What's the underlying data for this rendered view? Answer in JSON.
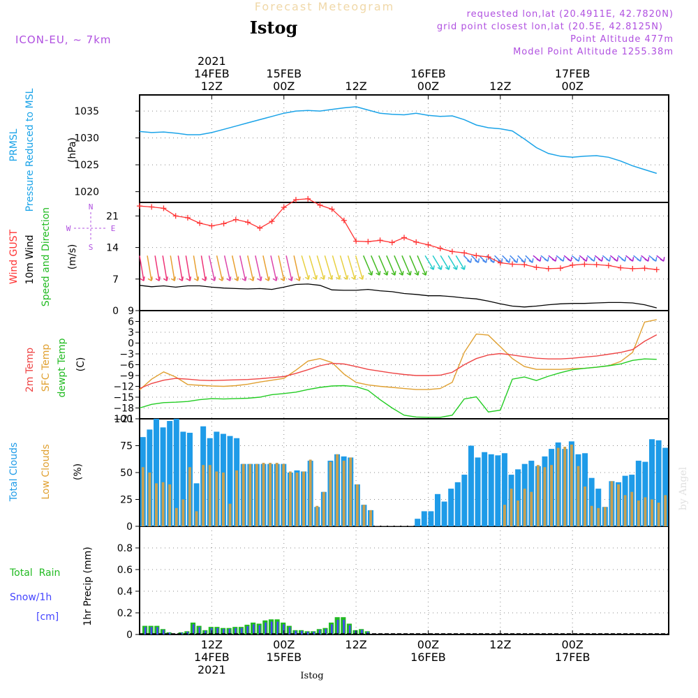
{
  "header": {
    "forecast_title": "Forecast Meteogram",
    "location": "Istog",
    "model": "ICON-EU, ~ 7km",
    "requested": "requested lon,lat (20.4911E, 42.7820N)",
    "grid_point": "grid point closest lon,lat (20.5E, 42.8125N)",
    "point_alt": "Point Altitude 477m",
    "model_alt": "Model Point Altitude 1255.38m",
    "bottom_location": "Istog",
    "watermark": "by Angel"
  },
  "time_axis": {
    "top_labels": [
      {
        "h": 12,
        "lines": [
          "2021",
          "14FEB",
          "12Z"
        ]
      },
      {
        "h": 24,
        "lines": [
          "15FEB",
          "00Z"
        ]
      },
      {
        "h": 36,
        "lines": [
          "12Z"
        ]
      },
      {
        "h": 48,
        "lines": [
          "16FEB",
          "00Z"
        ]
      },
      {
        "h": 60,
        "lines": [
          "12Z"
        ]
      },
      {
        "h": 72,
        "lines": [
          "17FEB",
          "00Z"
        ]
      }
    ],
    "bottom_labels": [
      {
        "h": 12,
        "lines": [
          "12Z",
          "14FEB",
          "2021"
        ]
      },
      {
        "h": 24,
        "lines": [
          "00Z",
          "15FEB"
        ]
      },
      {
        "h": 36,
        "lines": [
          "12Z"
        ]
      },
      {
        "h": 48,
        "lines": [
          "00Z",
          "16FEB"
        ]
      },
      {
        "h": 60,
        "lines": [
          "12Z"
        ]
      },
      {
        "h": 72,
        "lines": [
          "00Z",
          "17FEB"
        ]
      }
    ]
  },
  "labels": {
    "pressure": {
      "l1": "PRMSL",
      "l2": "Pressure Reduced to MSL",
      "unit": "(hPa)"
    },
    "wind": {
      "gust": "Wind GUST",
      "w10": "10m Wind",
      "speed": "Speed and Direction",
      "unit": "(m/s)",
      "compass_n": "N",
      "compass_s": "S",
      "compass_w": "W",
      "compass_e": "E"
    },
    "temp": {
      "t2m": "2m Temp",
      "sfc": "SFC Temp",
      "dew": "dewpt Temp",
      "unit": "(C)"
    },
    "clouds": {
      "total": "Total Clouds",
      "low": "Low Clouds",
      "unit": "(%)"
    },
    "precip": {
      "rain": "Total  Rain",
      "snow": "Snow/1h",
      "cm": "[cm]",
      "unit": "1hr Precip (mm)"
    }
  },
  "colors": {
    "pressure": "#1aa3e8",
    "gust": "#ff3333",
    "wind10": "#000000",
    "t2m": "#ee4444",
    "sfc": "#e0a030",
    "dew": "#22cc22",
    "total_cloud": "#1e9be8",
    "low_cloud": "#c8a050",
    "rain": "#22bb22",
    "snow": "#4444ff",
    "purple": "#b050e0"
  },
  "chart_data": [
    {
      "type": "line",
      "name": "pressure",
      "ylim": [
        1018,
        1038
      ],
      "yticks": [
        1020,
        1025,
        1030,
        1035
      ],
      "x": [
        0,
        2,
        4,
        6,
        8,
        10,
        12,
        14,
        16,
        18,
        20,
        22,
        24,
        26,
        28,
        30,
        32,
        34,
        36,
        38,
        40,
        42,
        44,
        46,
        48,
        50,
        52,
        54,
        56,
        58,
        60,
        62,
        64,
        66,
        68,
        70,
        72,
        74,
        76,
        78,
        80,
        82,
        84,
        86
      ],
      "values": [
        1031.2,
        1031.0,
        1031.1,
        1030.9,
        1030.6,
        1030.6,
        1031.0,
        1031.6,
        1032.2,
        1032.8,
        1033.4,
        1034.0,
        1034.6,
        1035.0,
        1035.1,
        1035.0,
        1035.3,
        1035.6,
        1035.8,
        1035.2,
        1034.6,
        1034.4,
        1034.3,
        1034.6,
        1034.2,
        1034.0,
        1034.1,
        1033.4,
        1032.4,
        1031.9,
        1031.7,
        1031.3,
        1029.8,
        1028.2,
        1027.1,
        1026.6,
        1026.4,
        1026.6,
        1026.7,
        1026.4,
        1025.7,
        1024.8,
        1024.1,
        1023.4
      ]
    },
    {
      "type": "line",
      "name": "wind",
      "ylim": [
        0,
        24
      ],
      "yticks": [
        0,
        7,
        14,
        21
      ],
      "x": [
        0,
        2,
        4,
        6,
        8,
        10,
        12,
        14,
        16,
        18,
        20,
        22,
        24,
        26,
        28,
        30,
        32,
        34,
        36,
        38,
        40,
        42,
        44,
        46,
        48,
        50,
        52,
        54,
        56,
        58,
        60,
        62,
        64,
        66,
        68,
        70,
        72,
        74,
        76,
        78,
        80,
        82,
        84,
        86
      ],
      "gust": [
        23.2,
        23.0,
        22.7,
        21.0,
        20.6,
        19.4,
        18.8,
        19.3,
        20.2,
        19.6,
        18.3,
        19.8,
        22.9,
        24.6,
        24.8,
        23.4,
        22.5,
        20.0,
        15.4,
        15.3,
        15.6,
        15.1,
        16.2,
        15.2,
        14.6,
        13.8,
        13.1,
        12.8,
        12.2,
        11.9,
        10.6,
        10.3,
        10.2,
        9.6,
        9.3,
        9.4,
        10.1,
        10.3,
        10.2,
        10.0,
        9.5,
        9.3,
        9.4,
        9.1
      ],
      "wind10": [
        5.6,
        5.3,
        5.5,
        5.2,
        5.5,
        5.5,
        5.2,
        5.0,
        4.9,
        4.8,
        4.9,
        4.7,
        5.2,
        5.8,
        5.9,
        5.6,
        4.6,
        4.5,
        4.5,
        4.7,
        4.4,
        4.2,
        3.8,
        3.6,
        3.3,
        3.3,
        3.1,
        2.8,
        2.6,
        2.1,
        1.5,
        1.0,
        0.8,
        1.0,
        1.3,
        1.5,
        1.6,
        1.6,
        1.7,
        1.8,
        1.8,
        1.7,
        1.3,
        0.6
      ],
      "arrow_colors": [
        "#ee3377",
        "#e8a030",
        "#dd44aa",
        "#e8d040",
        "#44bb22",
        "#22cccc",
        "#4488ee",
        "#aa22cc"
      ]
    },
    {
      "type": "line",
      "name": "temperature",
      "ylim": [
        -21,
        9
      ],
      "yticks": [
        -21,
        -18,
        -15,
        -12,
        -9,
        -6,
        -3,
        0,
        3,
        6,
        9
      ],
      "x": [
        0,
        2,
        4,
        6,
        8,
        10,
        12,
        14,
        16,
        18,
        20,
        22,
        24,
        26,
        28,
        30,
        32,
        34,
        36,
        38,
        40,
        42,
        44,
        46,
        48,
        50,
        52,
        54,
        56,
        58,
        60,
        62,
        64,
        66,
        68,
        70,
        72,
        74,
        76,
        78,
        80,
        82,
        84,
        86
      ],
      "t2m": [
        -12.6,
        -11.2,
        -10.3,
        -9.8,
        -10.0,
        -10.3,
        -10.4,
        -10.3,
        -10.2,
        -10.1,
        -9.9,
        -9.6,
        -9.3,
        -8.4,
        -7.4,
        -6.3,
        -5.6,
        -5.8,
        -6.5,
        -7.3,
        -7.8,
        -8.3,
        -8.7,
        -9.0,
        -9.0,
        -8.9,
        -8.1,
        -6.0,
        -4.3,
        -3.3,
        -2.9,
        -3.3,
        -3.8,
        -4.2,
        -4.4,
        -4.4,
        -4.2,
        -3.9,
        -3.6,
        -3.1,
        -2.6,
        -1.8,
        0.5,
        2.3
      ],
      "sfc": [
        -13.0,
        -10.0,
        -8.0,
        -9.4,
        -11.5,
        -11.7,
        -11.9,
        -12.0,
        -11.8,
        -11.4,
        -10.8,
        -10.3,
        -9.8,
        -7.5,
        -5.0,
        -4.3,
        -5.4,
        -8.6,
        -10.9,
        -11.6,
        -12.0,
        -12.3,
        -12.6,
        -12.9,
        -12.9,
        -12.6,
        -10.9,
        -2.6,
        2.5,
        2.2,
        -1.0,
        -4.3,
        -6.5,
        -7.3,
        -7.3,
        -7.3,
        -7.1,
        -7.0,
        -6.7,
        -6.3,
        -5.1,
        -2.6,
        5.8,
        6.5
      ],
      "dew": [
        -18.0,
        -17.0,
        -16.5,
        -16.4,
        -16.2,
        -15.7,
        -15.4,
        -15.5,
        -15.4,
        -15.3,
        -15.0,
        -14.3,
        -14.0,
        -13.6,
        -12.9,
        -12.3,
        -11.9,
        -11.8,
        -12.1,
        -13.1,
        -15.7,
        -18.0,
        -20.0,
        -20.5,
        -20.6,
        -20.6,
        -20.0,
        -15.5,
        -14.9,
        -19.1,
        -18.6,
        -10.0,
        -9.4,
        -10.4,
        -9.2,
        -8.2,
        -7.4,
        -7.0,
        -6.7,
        -6.3,
        -5.8,
        -4.8,
        -4.4,
        -4.5
      ]
    },
    {
      "type": "bar",
      "name": "clouds",
      "ylim": [
        0,
        100
      ],
      "yticks": [
        0,
        25,
        50,
        75,
        100
      ],
      "total": [
        83,
        90,
        100,
        92,
        98,
        100,
        88,
        87,
        40,
        93,
        82,
        88,
        86,
        84,
        82,
        58,
        58,
        58,
        58,
        58,
        58,
        58,
        50,
        52,
        51,
        61,
        18,
        32,
        61,
        67,
        65,
        64,
        39,
        20,
        15,
        0,
        0,
        0,
        0,
        0,
        0,
        7,
        14,
        14,
        30,
        23,
        35,
        41,
        48,
        75,
        64,
        69,
        67,
        66,
        68,
        48,
        53,
        58,
        61,
        56,
        65,
        72,
        78,
        72,
        79,
        67,
        68,
        45,
        35,
        18,
        42,
        41,
        47,
        48,
        61,
        60,
        81,
        80,
        73
      ],
      "low": [
        55,
        50,
        40,
        41,
        39,
        17,
        25,
        55,
        14,
        57,
        57,
        51,
        50,
        21,
        52,
        58,
        58,
        58,
        59,
        59,
        59,
        58,
        51,
        50,
        51,
        62,
        19,
        32,
        60,
        67,
        61,
        64,
        39,
        20,
        15,
        0,
        0,
        0,
        0,
        0,
        0,
        0,
        0,
        0,
        0,
        0,
        0,
        0,
        0,
        0,
        0,
        0,
        0,
        0,
        20,
        35,
        24,
        35,
        32,
        57,
        55,
        57,
        73,
        74,
        76,
        56,
        37,
        19,
        17,
        18,
        42,
        39,
        29,
        32,
        24,
        27,
        25,
        22,
        29
      ]
    },
    {
      "type": "bar",
      "name": "precipitation",
      "ylim": [
        0,
        1.0
      ],
      "yticks": [
        0,
        0.2,
        0.4,
        0.6,
        0.8
      ],
      "rain": [
        0.08,
        0.08,
        0.08,
        0.05,
        0.02,
        0.0,
        0.02,
        0.03,
        0.11,
        0.08,
        0.04,
        0.07,
        0.07,
        0.06,
        0.06,
        0.07,
        0.07,
        0.09,
        0.11,
        0.1,
        0.13,
        0.14,
        0.14,
        0.11,
        0.08,
        0.04,
        0.04,
        0.03,
        0.03,
        0.05,
        0.06,
        0.11,
        0.16,
        0.16,
        0.1,
        0.04,
        0.05,
        0.03,
        0.0
      ]
    }
  ]
}
